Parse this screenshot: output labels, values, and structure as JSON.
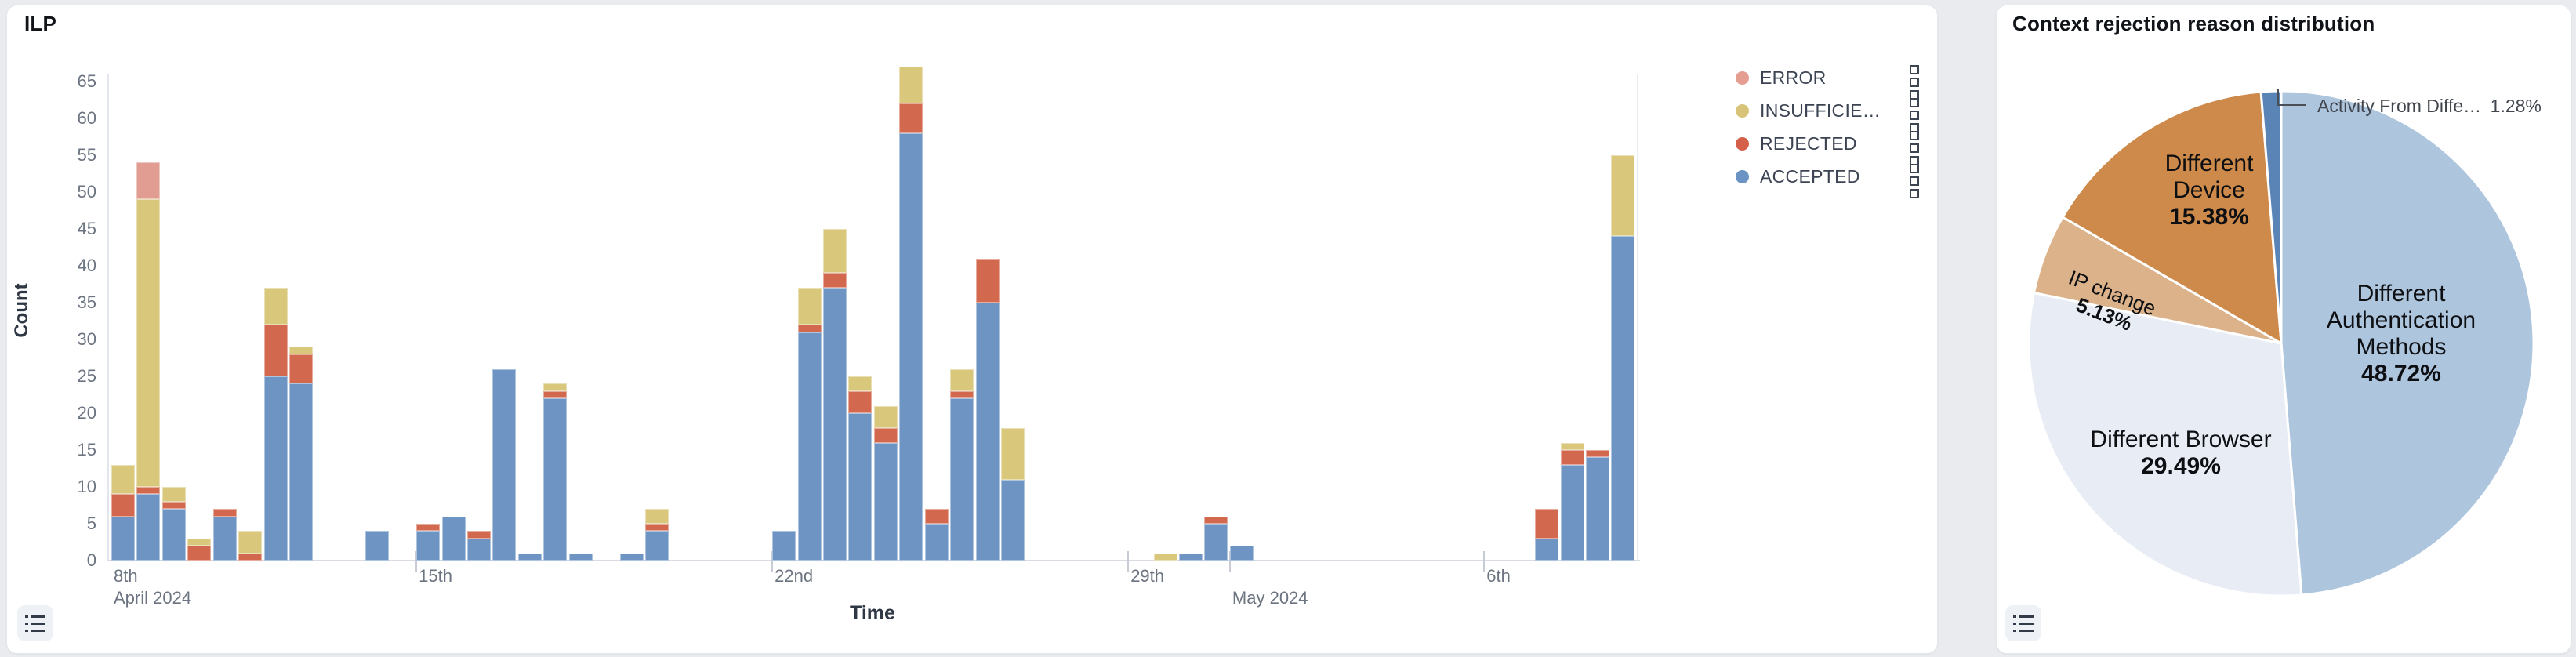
{
  "left_panel": {
    "title": "ILP",
    "y_axis": {
      "title": "Count",
      "ticks": [
        0,
        5,
        10,
        15,
        20,
        25,
        30,
        35,
        40,
        45,
        50,
        55,
        60,
        65
      ]
    },
    "x_axis": {
      "title": "Time",
      "ticks": [
        {
          "line1": "8th",
          "line2": "April 2024",
          "day": 0,
          "mark": false
        },
        {
          "line1": "15th",
          "line2": "",
          "day": 6,
          "mark": true
        },
        {
          "line1": "22nd",
          "line2": "",
          "day": 13,
          "mark": true
        },
        {
          "line1": "29th",
          "line2": "",
          "day": 20,
          "mark": true
        },
        {
          "line1": "",
          "line2": "May 2024",
          "day": 22,
          "mark": true
        },
        {
          "line1": "6th",
          "line2": "",
          "day": 27,
          "mark": true
        }
      ]
    },
    "legend": [
      {
        "label": "ERROR",
        "color": "#e49d91"
      },
      {
        "label": "INSUFFICIE…",
        "color": "#d8c478"
      },
      {
        "label": "REJECTED",
        "color": "#d4604a"
      },
      {
        "label": "ACCEPTED",
        "color": "#6b93c4"
      }
    ],
    "chart_data": {
      "type": "bar",
      "stacked": true,
      "time_axis": {
        "start_label": "8th April 2024",
        "bin": "half-day",
        "ylim": [
          0,
          67
        ]
      },
      "series_colors": {
        "accepted": "#6d94c3",
        "rejected": "#d2694e",
        "insufficient": "#d9c77c",
        "error": "#e19d92"
      },
      "bars": [
        {
          "t": "Apr 9 AM",
          "slot": 0,
          "accepted": 6,
          "rejected": 3,
          "insufficient": 4,
          "error": 0
        },
        {
          "t": "Apr 9 PM",
          "slot": 1,
          "accepted": 9,
          "rejected": 1,
          "insufficient": 39,
          "error": 5
        },
        {
          "t": "Apr 10 AM",
          "slot": 2,
          "accepted": 7,
          "rejected": 1,
          "insufficient": 2,
          "error": 0
        },
        {
          "t": "Apr 10 PM",
          "slot": 3,
          "accepted": 0,
          "rejected": 2,
          "insufficient": 1,
          "error": 0
        },
        {
          "t": "Apr 11 AM",
          "slot": 4,
          "accepted": 6,
          "rejected": 1,
          "insufficient": 0,
          "error": 0
        },
        {
          "t": "Apr 11 PM",
          "slot": 5,
          "accepted": 0,
          "rejected": 1,
          "insufficient": 3,
          "error": 0
        },
        {
          "t": "Apr 12 AM",
          "slot": 6,
          "accepted": 25,
          "rejected": 7,
          "insufficient": 5,
          "error": 0
        },
        {
          "t": "Apr 12 PM",
          "slot": 7,
          "accepted": 24,
          "rejected": 4,
          "insufficient": 1,
          "error": 0
        },
        {
          "t": "Apr 14 AM",
          "slot": 10,
          "accepted": 4,
          "rejected": 0,
          "insufficient": 0,
          "error": 0
        },
        {
          "t": "Apr 15 AM",
          "slot": 12,
          "accepted": 4,
          "rejected": 1,
          "insufficient": 0,
          "error": 0
        },
        {
          "t": "Apr 15 PM",
          "slot": 13,
          "accepted": 6,
          "rejected": 0,
          "insufficient": 0,
          "error": 0
        },
        {
          "t": "Apr 16 AM",
          "slot": 14,
          "accepted": 3,
          "rejected": 1,
          "insufficient": 0,
          "error": 0
        },
        {
          "t": "Apr 16 PM",
          "slot": 15,
          "accepted": 26,
          "rejected": 0,
          "insufficient": 0,
          "error": 0
        },
        {
          "t": "Apr 17 AM",
          "slot": 16,
          "accepted": 1,
          "rejected": 0,
          "insufficient": 0,
          "error": 0
        },
        {
          "t": "Apr 17 PM",
          "slot": 17,
          "accepted": 22,
          "rejected": 1,
          "insufficient": 1,
          "error": 0
        },
        {
          "t": "Apr 18 AM",
          "slot": 18,
          "accepted": 1,
          "rejected": 0,
          "insufficient": 0,
          "error": 0
        },
        {
          "t": "Apr 19 AM",
          "slot": 20,
          "accepted": 1,
          "rejected": 0,
          "insufficient": 0,
          "error": 0
        },
        {
          "t": "Apr 19 PM",
          "slot": 21,
          "accepted": 4,
          "rejected": 1,
          "insufficient": 2,
          "error": 0
        },
        {
          "t": "Apr 22 AM",
          "slot": 26,
          "accepted": 4,
          "rejected": 0,
          "insufficient": 0,
          "error": 0
        },
        {
          "t": "Apr 22 PM",
          "slot": 27,
          "accepted": 31,
          "rejected": 1,
          "insufficient": 5,
          "error": 0
        },
        {
          "t": "Apr 23 AM",
          "slot": 28,
          "accepted": 37,
          "rejected": 2,
          "insufficient": 6,
          "error": 0
        },
        {
          "t": "Apr 23 PM",
          "slot": 29,
          "accepted": 20,
          "rejected": 3,
          "insufficient": 2,
          "error": 0
        },
        {
          "t": "Apr 24 AM",
          "slot": 30,
          "accepted": 16,
          "rejected": 2,
          "insufficient": 3,
          "error": 0
        },
        {
          "t": "Apr 24 PM",
          "slot": 31,
          "accepted": 58,
          "rejected": 4,
          "insufficient": 5,
          "error": 0
        },
        {
          "t": "Apr 25 AM",
          "slot": 32,
          "accepted": 5,
          "rejected": 2,
          "insufficient": 0,
          "error": 0
        },
        {
          "t": "Apr 25 PM",
          "slot": 33,
          "accepted": 22,
          "rejected": 1,
          "insufficient": 3,
          "error": 0
        },
        {
          "t": "Apr 26 AM",
          "slot": 34,
          "accepted": 35,
          "rejected": 6,
          "insufficient": 0,
          "error": 0
        },
        {
          "t": "Apr 26 PM",
          "slot": 35,
          "accepted": 11,
          "rejected": 0,
          "insufficient": 7,
          "error": 0
        },
        {
          "t": "Apr 29 PM",
          "slot": 41,
          "accepted": 0,
          "rejected": 0,
          "insufficient": 1,
          "error": 0
        },
        {
          "t": "Apr 30 AM",
          "slot": 42,
          "accepted": 1,
          "rejected": 0,
          "insufficient": 0,
          "error": 0
        },
        {
          "t": "Apr 30 PM",
          "slot": 43,
          "accepted": 5,
          "rejected": 1,
          "insufficient": 0,
          "error": 0
        },
        {
          "t": "May 1 AM",
          "slot": 44,
          "accepted": 2,
          "rejected": 0,
          "insufficient": 0,
          "error": 0
        },
        {
          "t": "May 7 AM",
          "slot": 56,
          "accepted": 3,
          "rejected": 4,
          "insufficient": 0,
          "error": 0
        },
        {
          "t": "May 7 PM",
          "slot": 57,
          "accepted": 13,
          "rejected": 2,
          "insufficient": 1,
          "error": 0
        },
        {
          "t": "May 8 AM",
          "slot": 58,
          "accepted": 14,
          "rejected": 1,
          "insufficient": 0,
          "error": 0
        },
        {
          "t": "May 8 PM",
          "slot": 59,
          "accepted": 44,
          "rejected": 0,
          "insufficient": 11,
          "error": 0
        }
      ]
    }
  },
  "right_panel": {
    "title": "Context rejection reason distribution",
    "chart_data": {
      "type": "pie",
      "legend_position": "none",
      "slices": [
        {
          "name": "Different Authentication Methods",
          "pct": 48.72,
          "color": "#aec5de"
        },
        {
          "name": "Different Browser",
          "pct": 29.49,
          "color": "#e8ecf4"
        },
        {
          "name": "IP change",
          "pct": 5.13,
          "color": "#dbb28a"
        },
        {
          "name": "Different Device",
          "pct": 15.38,
          "color": "#cd8a4a"
        },
        {
          "name": "Activity From Diffe…",
          "pct": 1.28,
          "color": "#5b84b6"
        }
      ],
      "labels": [
        {
          "x": 517,
          "y": 420,
          "rotate": 0,
          "font": 30,
          "lines": [
            [
              {
                "text": "Different",
                "bold": false
              }
            ],
            [
              {
                "text": "Authentication",
                "bold": false
              }
            ],
            [
              {
                "text": "Methods ",
                "bold": false
              },
              {
                "text": "48.72%",
                "bold": true
              }
            ]
          ]
        },
        {
          "x": 236,
          "y": 572,
          "rotate": 0,
          "font": 30,
          "lines": [
            [
              {
                "text": "Different Browser",
                "bold": false
              }
            ],
            [
              {
                "text": "29.49%",
                "bold": true
              }
            ]
          ]
        },
        {
          "x": 143,
          "y": 382,
          "rotate": 21,
          "font": 26,
          "lines": [
            [
              {
                "text": "IP change",
                "bold": false
              }
            ],
            [
              {
                "text": "5.13%",
                "bold": true
              }
            ]
          ]
        },
        {
          "x": 272,
          "y": 237,
          "rotate": 0,
          "font": 30,
          "lines": [
            [
              {
                "text": "Different",
                "bold": false
              }
            ],
            [
              {
                "text": "Device",
                "bold": false
              }
            ],
            [
              {
                "text": "15.38%",
                "bold": true
              }
            ]
          ]
        }
      ],
      "callout": {
        "text": "Activity From Diffe…",
        "pct_text": "1.28%"
      }
    }
  }
}
